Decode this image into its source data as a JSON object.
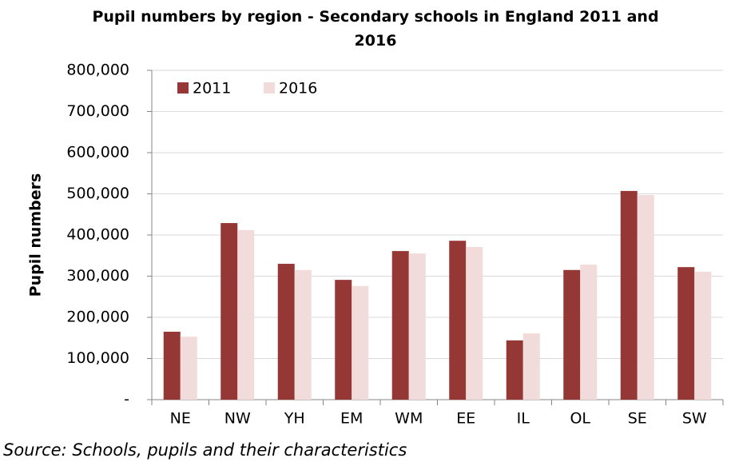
{
  "chart_data": {
    "type": "bar",
    "title": "Pupil numbers by region - Secondary schools in England 2011 and 2016",
    "y_label": "Pupil numbers",
    "source": "Source: Schools, pupils and their characteristics",
    "categories": [
      "NE",
      "NW",
      "YH",
      "EM",
      "WM",
      "EE",
      "IL",
      "OL",
      "SE",
      "SW"
    ],
    "series": [
      {
        "name": "2011",
        "color": "#953735",
        "values": [
          165000,
          429000,
          330000,
          291000,
          361000,
          386000,
          144000,
          315000,
          507000,
          322000
        ]
      },
      {
        "name": "2016",
        "color": "#f2dcdb",
        "values": [
          153000,
          412000,
          315000,
          276000,
          355000,
          371000,
          161000,
          328000,
          497000,
          311000
        ]
      }
    ],
    "ylim": [
      0,
      800000
    ],
    "yticks": [
      {
        "value": 0,
        "label": "-"
      },
      {
        "value": 100000,
        "label": "100,000"
      },
      {
        "value": 200000,
        "label": "200,000"
      },
      {
        "value": 300000,
        "label": "300,000"
      },
      {
        "value": 400000,
        "label": "400,000"
      },
      {
        "value": 500000,
        "label": "500,000"
      },
      {
        "value": 600000,
        "label": "600,000"
      },
      {
        "value": 700000,
        "label": "700,000"
      },
      {
        "value": 800000,
        "label": "800,000"
      }
    ],
    "grid": true,
    "legend": "upper-left"
  }
}
